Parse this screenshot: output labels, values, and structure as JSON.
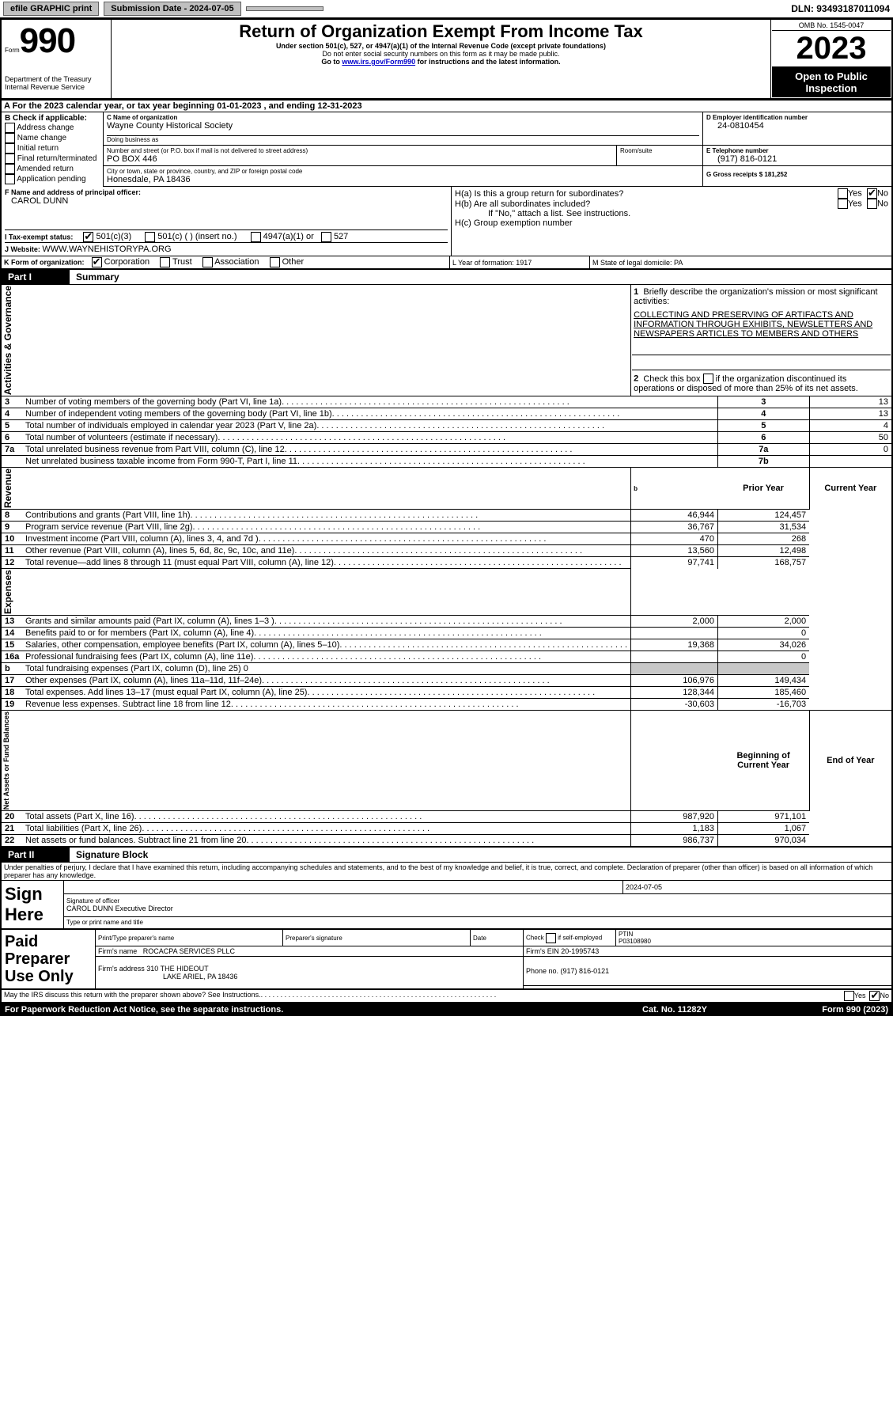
{
  "topbar": {
    "efile_label": "efile GRAPHIC print",
    "submission_label": "Submission Date - 2024-07-05",
    "dln_label": "DLN: 93493187011094"
  },
  "header": {
    "form_word": "Form",
    "form_number": "990",
    "title": "Return of Organization Exempt From Income Tax",
    "subtitle": "Under section 501(c), 527, or 4947(a)(1) of the Internal Revenue Code (except private foundations)",
    "warn1": "Do not enter social security numbers on this form as it may be made public.",
    "warn2_prefix": "Go to ",
    "warn2_link": "www.irs.gov/Form990",
    "warn2_suffix": " for instructions and the latest information.",
    "dept": "Department of the Treasury",
    "irs": "Internal Revenue Service",
    "omb_label": "OMB No. 1545-0047",
    "year": "2023",
    "open_public": "Open to Public Inspection"
  },
  "boxA": {
    "line": "A For the 2023 calendar year, or tax year beginning 01-01-2023   , and ending 12-31-2023"
  },
  "boxB": {
    "title": "B Check if applicable:",
    "items": [
      "Address change",
      "Name change",
      "Initial return",
      "Final return/terminated",
      "Amended return",
      "Application pending"
    ]
  },
  "boxC": {
    "name_label": "C Name of organization",
    "name": "Wayne County Historical Society",
    "dba_label": "Doing business as",
    "dba": "",
    "street_label": "Number and street (or P.O. box if mail is not delivered to street address)",
    "street": "PO BOX 446",
    "room_label": "Room/suite",
    "room": "",
    "city_label": "City or town, state or province, country, and ZIP or foreign postal code",
    "city": "Honesdale, PA   18436"
  },
  "boxD": {
    "label": "D Employer identification number",
    "value": "24-0810454"
  },
  "boxE": {
    "label": "E Telephone number",
    "value": "(917) 816-0121"
  },
  "boxG": {
    "label": "G Gross receipts $ 181,252"
  },
  "boxF": {
    "label": "F  Name and address of principal officer:",
    "value": "CAROL DUNN"
  },
  "boxH": {
    "a_label": "H(a)  Is this a group return for subordinates?",
    "b_label": "H(b)  Are all subordinates included?",
    "b_note": "If \"No,\" attach a list. See instructions.",
    "c_label": "H(c)  Group exemption number ",
    "yes": "Yes",
    "no": "No"
  },
  "boxI": {
    "label": "I    Tax-exempt status:",
    "o1": "501(c)(3)",
    "o2": "501(c) (  ) (insert no.)",
    "o3": "4947(a)(1) or",
    "o4": "527"
  },
  "boxJ": {
    "label": "J   Website: ",
    "value": "WWW.WAYNEHISTORYPA.ORG"
  },
  "boxK": {
    "label": "K Form of organization:",
    "o1": "Corporation",
    "o2": "Trust",
    "o3": "Association",
    "o4": "Other"
  },
  "boxL": {
    "label": "L Year of formation: 1917"
  },
  "boxM": {
    "label": "M State of legal domicile: PA"
  },
  "part1": {
    "tab": "Part I",
    "title": "Summary",
    "side_ag": "Activities & Governance",
    "side_rev": "Revenue",
    "side_exp": "Expenses",
    "side_na": "Net Assets or Fund Balances",
    "l1_label": "Briefly describe the organization's mission or most significant activities:",
    "l1_text": "COLLECTING AND PRESERVING OF ARTIFACTS AND INFORMATION THROUGH EXHIBITS, NEWSLETTERS AND NEWSPAPERS ARTICLES TO MEMBERS AND OTHERS",
    "l2": "Check this box        if the organization discontinued its operations or disposed of more than 25% of its net assets.",
    "rows_ag": [
      {
        "n": "3",
        "t": "Number of voting members of the governing body (Part VI, line 1a)",
        "r": "3",
        "v": "13"
      },
      {
        "n": "4",
        "t": "Number of independent voting members of the governing body (Part VI, line 1b)",
        "r": "4",
        "v": "13"
      },
      {
        "n": "5",
        "t": "Total number of individuals employed in calendar year 2023 (Part V, line 2a)",
        "r": "5",
        "v": "4"
      },
      {
        "n": "6",
        "t": "Total number of volunteers (estimate if necessary)",
        "r": "6",
        "v": "50"
      },
      {
        "n": "7a",
        "t": "Total unrelated business revenue from Part VIII, column (C), line 12",
        "r": "7a",
        "v": "0"
      },
      {
        "n": "",
        "t": "Net unrelated business taxable income from Form 990-T, Part I, line 11",
        "r": "7b",
        "v": ""
      }
    ],
    "col_prior": "Prior Year",
    "col_current": "Current Year",
    "rows_rev": [
      {
        "n": "8",
        "t": "Contributions and grants (Part VIII, line 1h)",
        "p": "46,944",
        "c": "124,457"
      },
      {
        "n": "9",
        "t": "Program service revenue (Part VIII, line 2g)",
        "p": "36,767",
        "c": "31,534"
      },
      {
        "n": "10",
        "t": "Investment income (Part VIII, column (A), lines 3, 4, and 7d )",
        "p": "470",
        "c": "268"
      },
      {
        "n": "11",
        "t": "Other revenue (Part VIII, column (A), lines 5, 6d, 8c, 9c, 10c, and 11e)",
        "p": "13,560",
        "c": "12,498"
      },
      {
        "n": "12",
        "t": "Total revenue—add lines 8 through 11 (must equal Part VIII, column (A), line 12)",
        "p": "97,741",
        "c": "168,757"
      }
    ],
    "rows_exp": [
      {
        "n": "13",
        "t": "Grants and similar amounts paid (Part IX, column (A), lines 1–3 )",
        "p": "2,000",
        "c": "2,000"
      },
      {
        "n": "14",
        "t": "Benefits paid to or for members (Part IX, column (A), line 4)",
        "p": "",
        "c": "0"
      },
      {
        "n": "15",
        "t": "Salaries, other compensation, employee benefits (Part IX, column (A), lines 5–10)",
        "p": "19,368",
        "c": "34,026"
      },
      {
        "n": "16a",
        "t": "Professional fundraising fees (Part IX, column (A), line 11e)",
        "p": "",
        "c": "0"
      },
      {
        "n": "b",
        "t": "Total fundraising expenses (Part IX, column (D), line 25) 0",
        "p": "GRAY",
        "c": "GRAY"
      },
      {
        "n": "17",
        "t": "Other expenses (Part IX, column (A), lines 11a–11d, 11f–24e)",
        "p": "106,976",
        "c": "149,434"
      },
      {
        "n": "18",
        "t": "Total expenses. Add lines 13–17 (must equal Part IX, column (A), line 25)",
        "p": "128,344",
        "c": "185,460"
      },
      {
        "n": "19",
        "t": "Revenue less expenses. Subtract line 18 from line 12",
        "p": "-30,603",
        "c": "-16,703"
      }
    ],
    "col_begin": "Beginning of Current Year",
    "col_end": "End of Year",
    "rows_na": [
      {
        "n": "20",
        "t": "Total assets (Part X, line 16)",
        "p": "987,920",
        "c": "971,101"
      },
      {
        "n": "21",
        "t": "Total liabilities (Part X, line 26)",
        "p": "1,183",
        "c": "1,067"
      },
      {
        "n": "22",
        "t": "Net assets or fund balances. Subtract line 21 from line 20",
        "p": "986,737",
        "c": "970,034"
      }
    ]
  },
  "part2": {
    "tab": "Part II",
    "title": "Signature Block",
    "declaration": "Under penalties of perjury, I declare that I have examined this return, including accompanying schedules and statements, and to the best of my knowledge and belief, it is true, correct, and complete. Declaration of preparer (other than officer) is based on all information of which preparer has any knowledge.",
    "sign_here": "Sign Here",
    "sig_date": "2024-07-05",
    "sig_officer_label": "Signature of officer",
    "sig_officer_name": "CAROL DUNN  Executive Director",
    "type_label": "Type or print name and title",
    "date_label": "Date",
    "paid": "Paid Preparer Use Only",
    "prep_name_label": "Print/Type preparer's name",
    "prep_sig_label": "Preparer's signature",
    "check_self": "Check         if self-employed",
    "ptin_label": "PTIN",
    "ptin": "P03108980",
    "firm_name_label": "Firm's name   ",
    "firm_name": "ROCACPA SERVICES PLLC",
    "firm_ein_label": "Firm's EIN  ",
    "firm_ein": "20-1995743",
    "firm_addr_label": "Firm's address ",
    "firm_addr1": "310 THE HIDEOUT",
    "firm_addr2": "LAKE ARIEL, PA  18436",
    "phone_label": "Phone no. ",
    "phone": "(917) 816-0121",
    "may_irs": "May the IRS discuss this return with the preparer shown above? See Instructions.",
    "yes": "Yes",
    "no": "No"
  },
  "footer": {
    "left": "For Paperwork Reduction Act Notice, see the separate instructions.",
    "mid": "Cat. No. 11282Y",
    "right": "Form 990 (2023)"
  }
}
